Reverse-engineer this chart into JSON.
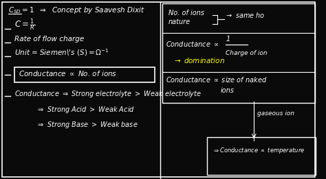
{
  "bg_color": "#0a0a0a",
  "text_color": "#ffffff",
  "yellow_color": "#ffff00",
  "border_color": "#ffffff",
  "fig_width": 4.74,
  "fig_height": 2.61,
  "title_text": "$C_{SD}=1$ ⇒ Concept by Saavesh Dixit",
  "line1": "$C = \\dfrac{1}{R}$",
  "line2": "Rate of flow charge",
  "line3": "Unit = Siemen's $(S) = \\Omega^{-1}$",
  "line4": "Conductance ∝ No. of ions",
  "line5": "Conductance ⇒ Strong electrolyte > Weak electrolyte",
  "line6": "⇒ Strong Acid > Weak Acid",
  "line7": "⇒ Strong Base > Weak base",
  "right1a": "No. of ions",
  "right1b": "nature",
  "right1c": "→ same ho",
  "right2a": "Conductance ∝ $\\dfrac{1}{\\text{Charge of ion}}$",
  "right2b": "→ domination",
  "right3a": "Conductance ∝ size of naked",
  "right3b": "ions",
  "right4a": "gaseous ion",
  "right4b": "⇒Conductance ∝ temperature"
}
